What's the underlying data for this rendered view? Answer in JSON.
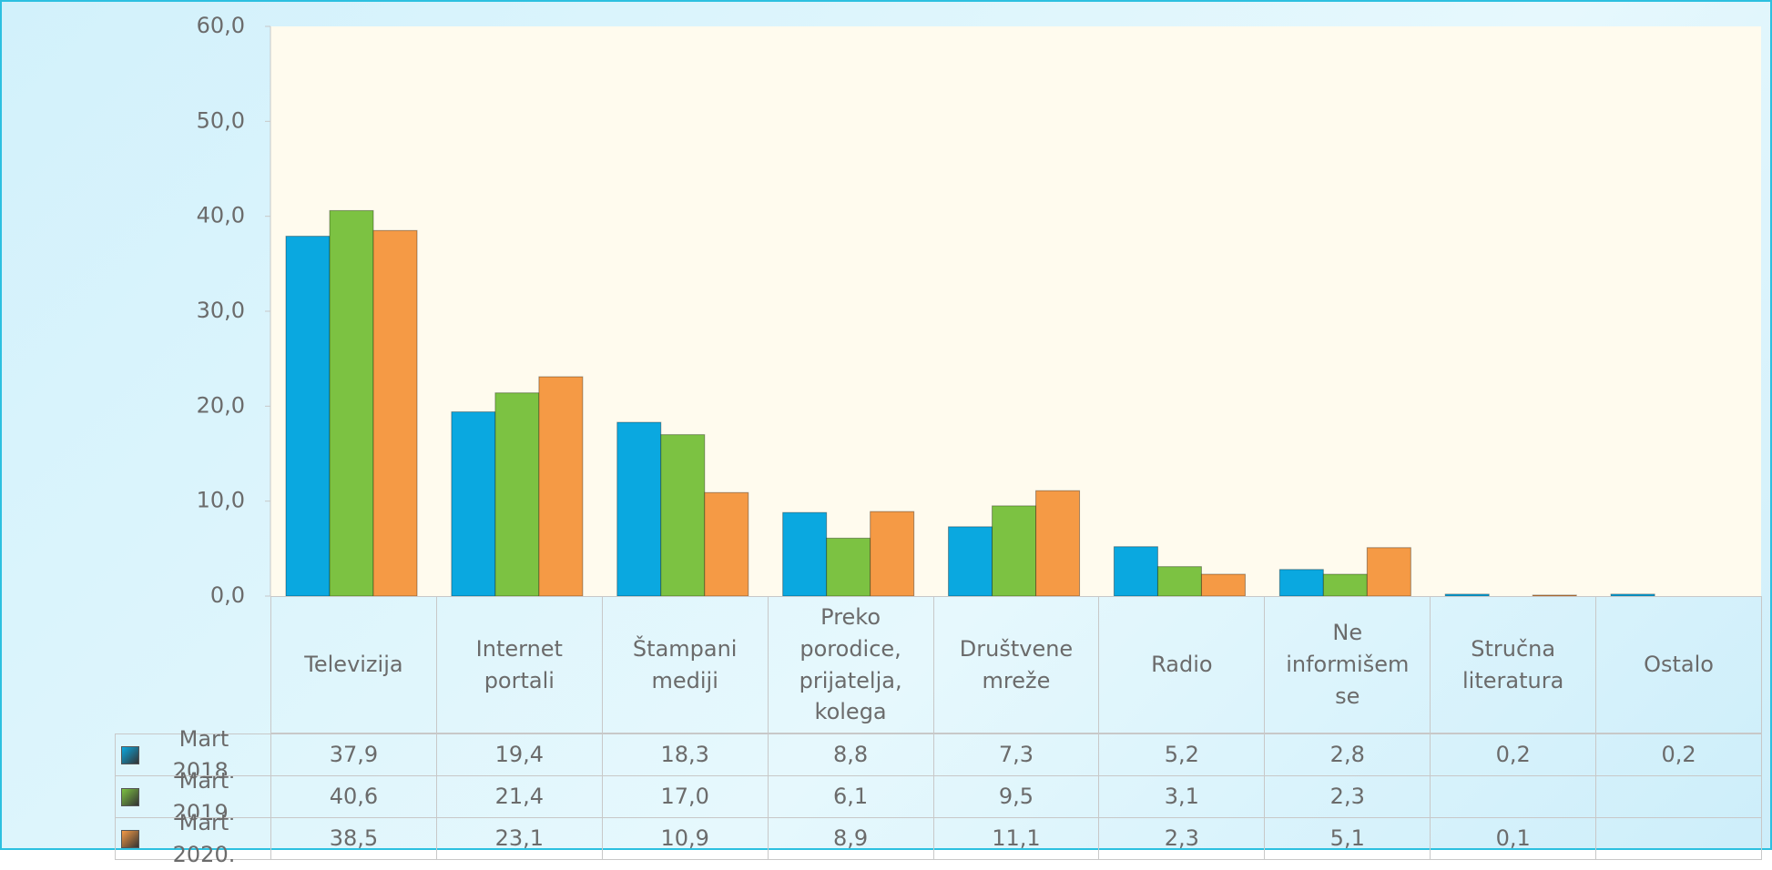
{
  "chart_data": {
    "type": "bar",
    "categories": [
      "Televizija",
      "Internet portali",
      "Štampani mediji",
      "Preko porodice, prijatelja, kolega",
      "Društvene mreže",
      "Radio",
      "Ne informišem se",
      "Stručna literatura",
      "Ostalo"
    ],
    "series": [
      {
        "name": "Mart 2018.",
        "color": "#0aa8e0",
        "values": [
          37.9,
          19.4,
          18.3,
          8.8,
          7.3,
          5.2,
          2.8,
          0.2,
          0.2
        ],
        "value_labels": [
          "37,9",
          "19,4",
          "18,3",
          "8,8",
          "7,3",
          "5,2",
          "2,8",
          "0,2",
          "0,2"
        ]
      },
      {
        "name": "Mart 2019.",
        "color": "#7cc242",
        "values": [
          40.6,
          21.4,
          17.0,
          6.1,
          9.5,
          3.1,
          2.3,
          null,
          null
        ],
        "value_labels": [
          "40,6",
          "21,4",
          "17,0",
          "6,1",
          "9,5",
          "3,1",
          "2,3",
          null,
          null
        ]
      },
      {
        "name": "Mart 2020.",
        "color": "#f59a45",
        "values": [
          38.5,
          23.1,
          10.9,
          8.9,
          11.1,
          2.3,
          5.1,
          0.1,
          null
        ],
        "value_labels": [
          "38,5",
          "23,1",
          "10,9",
          "8,9",
          "11,1",
          "2,3",
          "5,1",
          "0,1",
          null
        ]
      }
    ],
    "ylim": [
      0,
      60
    ],
    "yticks": [
      {
        "value": 0,
        "label": "0,0"
      },
      {
        "value": 10,
        "label": "10,0"
      },
      {
        "value": 20,
        "label": "20,0"
      },
      {
        "value": 30,
        "label": "30,0"
      },
      {
        "value": 40,
        "label": "40,0"
      },
      {
        "value": 50,
        "label": "50,0"
      },
      {
        "value": 60,
        "label": "60,0"
      }
    ],
    "grid": false
  }
}
